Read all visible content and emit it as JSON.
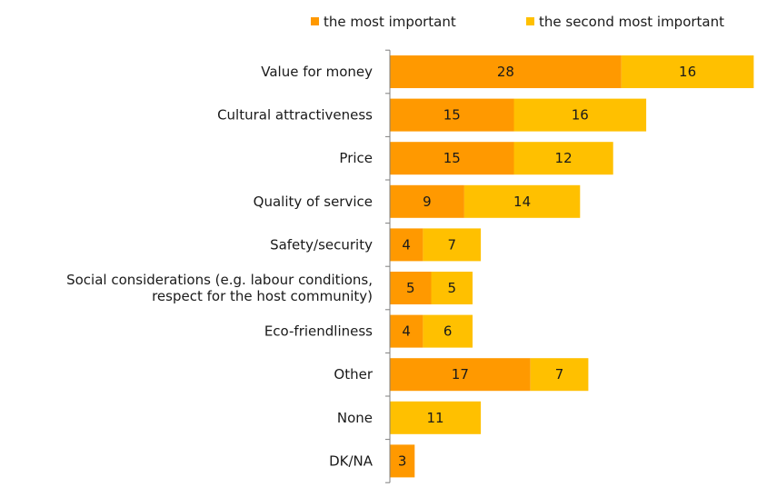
{
  "chart_data": {
    "type": "bar",
    "orientation": "horizontal",
    "stacked": true,
    "title": "",
    "xlabel": "",
    "ylabel": "",
    "legend_position": "top",
    "grid": false,
    "categories": [
      "Value for money",
      "Cultural attractiveness",
      "Price",
      "Quality of service",
      "Safety/security",
      "Social considerations (e.g. labour conditions,\nrespect for the host community)",
      "Eco-friendliness",
      "Other",
      "None",
      "DK/NA"
    ],
    "series": [
      {
        "name": "the most important",
        "color": "#FF9900",
        "values": [
          28,
          15,
          15,
          9,
          4,
          5,
          4,
          17,
          null,
          3
        ]
      },
      {
        "name": "the second most important",
        "color": "#FFC000",
        "values": [
          16,
          16,
          12,
          14,
          7,
          5,
          6,
          7,
          11,
          null
        ]
      }
    ],
    "xlim": [
      0,
      46
    ]
  }
}
